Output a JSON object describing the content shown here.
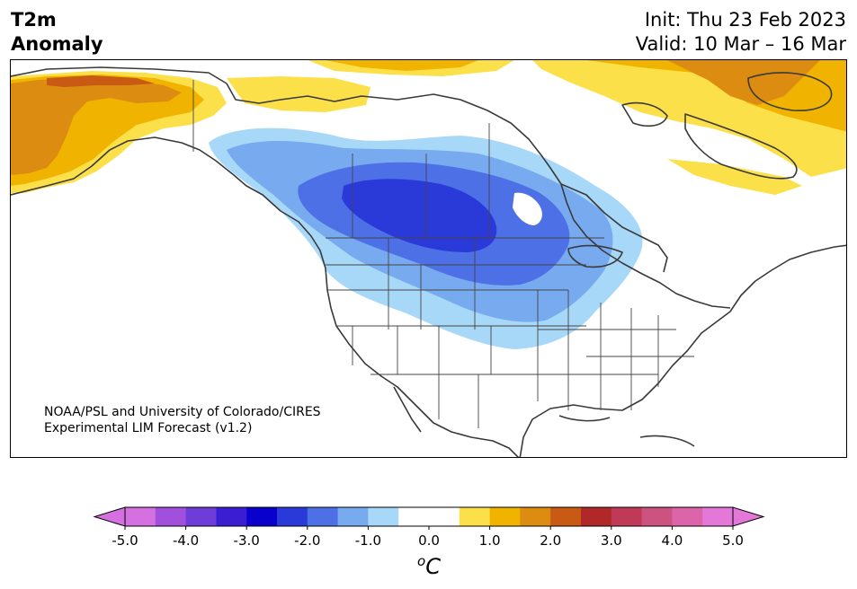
{
  "header": {
    "variable": "T2m",
    "subtitle": "Anomaly",
    "init": "Init: Thu 23 Feb 2023",
    "valid": "Valid: 10 Mar – 16 Mar"
  },
  "credit": {
    "line1": "NOAA/PSL and University of Colorado/CIRES",
    "line2": "Experimental LIM Forecast (v1.2)"
  },
  "colorbar": {
    "colors": [
      "#d470e0",
      "#a050dc",
      "#6e3cd8",
      "#3c1ed2",
      "#0a00cc",
      "#2a3ad8",
      "#4e70e6",
      "#78aaf0",
      "#a8d8f8",
      "#ffffff",
      "#ffffff",
      "#fce04a",
      "#f0b400",
      "#dc8c10",
      "#c85a14",
      "#b02828",
      "#c03a58",
      "#cc5280",
      "#dc64a8",
      "#e478d8"
    ],
    "ticks": [
      "-5.0",
      "-4.0",
      "-3.0",
      "-2.0",
      "-1.0",
      "0.0",
      "1.0",
      "2.0",
      "3.0",
      "4.0",
      "5.0"
    ],
    "unit_prefix": "o",
    "unit": "C"
  }
}
